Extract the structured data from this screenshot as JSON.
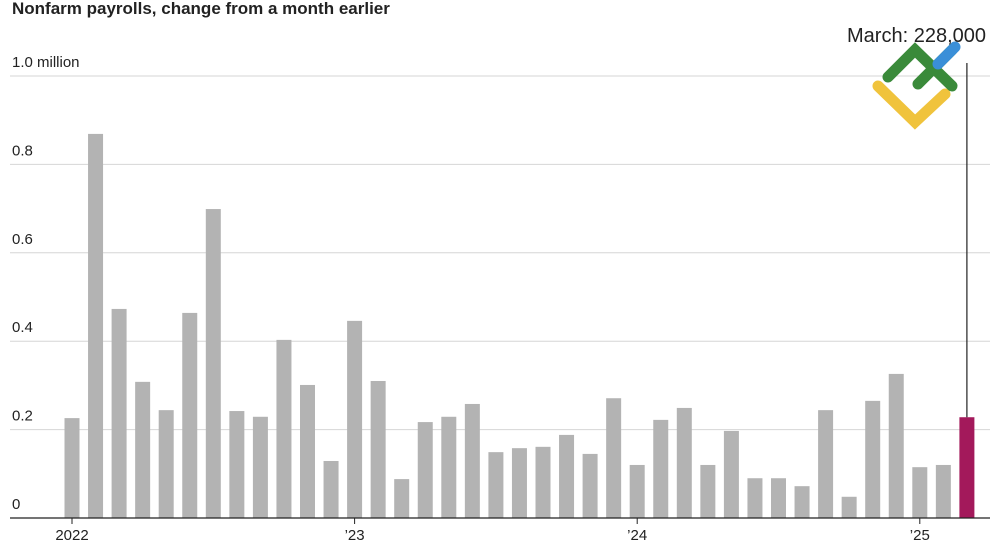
{
  "chart_data": {
    "type": "bar",
    "title": "Nonfarm payrolls, change from a month earlier",
    "annotation": "March: 228,000",
    "categories": [
      "2022",
      null,
      null,
      null,
      null,
      null,
      null,
      null,
      null,
      null,
      null,
      null,
      "’23",
      null,
      null,
      null,
      null,
      null,
      null,
      null,
      null,
      null,
      null,
      null,
      "’24",
      null,
      null,
      null,
      null,
      null,
      null,
      null,
      null,
      null,
      null,
      null,
      "’25",
      null,
      null
    ],
    "values": [
      0.226,
      0.869,
      0.473,
      0.308,
      0.244,
      0.464,
      0.699,
      0.242,
      0.229,
      0.403,
      0.301,
      0.129,
      0.446,
      0.31,
      0.088,
      0.217,
      0.229,
      0.258,
      0.149,
      0.158,
      0.161,
      0.188,
      0.145,
      0.271,
      0.12,
      0.222,
      0.249,
      0.12,
      0.197,
      0.09,
      0.09,
      0.072,
      0.244,
      0.048,
      0.265,
      0.326,
      0.115,
      0.12,
      0.228
    ],
    "colors": [
      "#b3b3b3",
      "#b3b3b3",
      "#b3b3b3",
      "#b3b3b3",
      "#b3b3b3",
      "#b3b3b3",
      "#b3b3b3",
      "#b3b3b3",
      "#b3b3b3",
      "#b3b3b3",
      "#b3b3b3",
      "#b3b3b3",
      "#b3b3b3",
      "#b3b3b3",
      "#b3b3b3",
      "#b3b3b3",
      "#b3b3b3",
      "#b3b3b3",
      "#b3b3b3",
      "#b3b3b3",
      "#b3b3b3",
      "#b3b3b3",
      "#b3b3b3",
      "#b3b3b3",
      "#b3b3b3",
      "#b3b3b3",
      "#b3b3b3",
      "#b3b3b3",
      "#b3b3b3",
      "#b3b3b3",
      "#b3b3b3",
      "#b3b3b3",
      "#b3b3b3",
      "#b3b3b3",
      "#b3b3b3",
      "#b3b3b3",
      "#b3b3b3",
      "#b3b3b3",
      "#a3195b"
    ],
    "ylim": [
      0,
      1.0
    ],
    "yticks": [
      0,
      0.2,
      0.4,
      0.6,
      0.8,
      {
        "value": 1.0,
        "label": "1.0 million"
      }
    ],
    "grid": true
  }
}
